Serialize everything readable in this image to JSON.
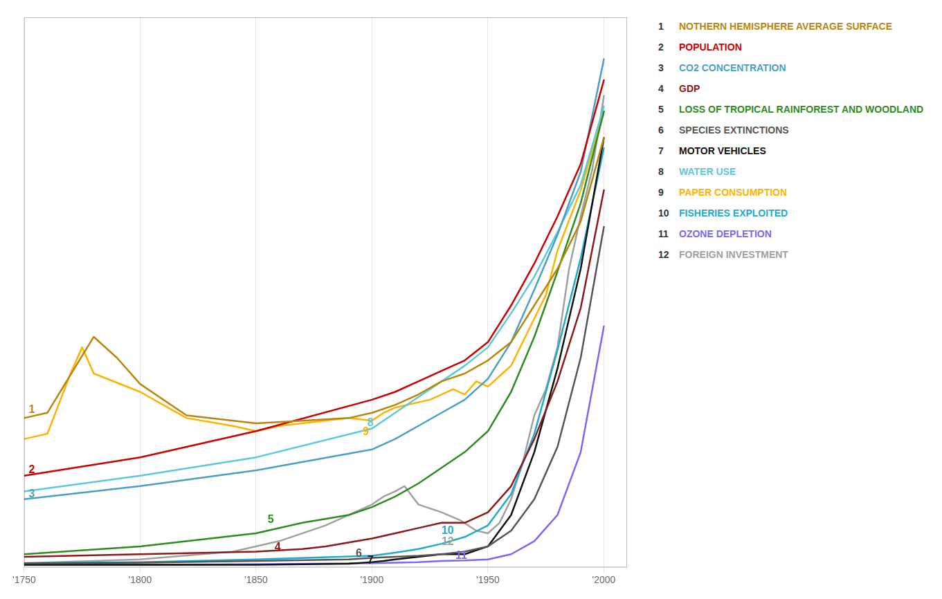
{
  "chart_data": {
    "type": "line",
    "xlim": [
      1750,
      2010
    ],
    "ylim": [
      0,
      1.05
    ],
    "xticks": [
      {
        "value": 1750,
        "label": "'1750"
      },
      {
        "value": 1800,
        "label": "'1800"
      },
      {
        "value": 1850,
        "label": "'1850"
      },
      {
        "value": 1900,
        "label": "'1900"
      },
      {
        "value": 1950,
        "label": "'1950"
      },
      {
        "value": 2000,
        "label": "'2000"
      }
    ],
    "yticks": [],
    "tick_labels": "x",
    "grid": true,
    "legend": "right",
    "series": [
      {
        "number": "1",
        "name": "NOTHERN HEMISPHERE AVERAGE SURFACE",
        "color": "#B8860B",
        "x": [
          1750,
          1760,
          1780,
          1790,
          1800,
          1820,
          1850,
          1870,
          1890,
          1900,
          1910,
          1920,
          1930,
          1940,
          1950,
          1960,
          1970,
          1980,
          1990,
          2000
        ],
        "values": [
          0.285,
          0.295,
          0.44,
          0.4,
          0.35,
          0.29,
          0.275,
          0.28,
          0.285,
          0.295,
          0.31,
          0.33,
          0.355,
          0.37,
          0.395,
          0.43,
          0.5,
          0.57,
          0.66,
          0.82
        ]
      },
      {
        "number": "2",
        "name": "POPULATION",
        "color": "#CC0000",
        "x": [
          1750,
          1800,
          1850,
          1900,
          1910,
          1920,
          1930,
          1940,
          1950,
          1960,
          1970,
          1980,
          1990,
          2000
        ],
        "values": [
          0.175,
          0.21,
          0.26,
          0.32,
          0.335,
          0.355,
          0.375,
          0.395,
          0.43,
          0.5,
          0.58,
          0.67,
          0.77,
          0.93
        ]
      },
      {
        "number": "3",
        "name": "CO2 CONCENTRATION",
        "color": "#4A9FC4",
        "x": [
          1750,
          1800,
          1850,
          1900,
          1910,
          1920,
          1930,
          1940,
          1950,
          1960,
          1970,
          1980,
          1990,
          2000
        ],
        "values": [
          0.13,
          0.155,
          0.185,
          0.225,
          0.245,
          0.27,
          0.295,
          0.32,
          0.36,
          0.43,
          0.53,
          0.635,
          0.755,
          0.97
        ]
      },
      {
        "number": "4",
        "name": "GDP",
        "color": "#8B1A1A",
        "x": [
          1750,
          1800,
          1850,
          1870,
          1880,
          1900,
          1910,
          1920,
          1930,
          1940,
          1950,
          1960,
          1970,
          1980,
          1990,
          2000
        ],
        "values": [
          0.02,
          0.025,
          0.03,
          0.035,
          0.04,
          0.055,
          0.065,
          0.075,
          0.085,
          0.085,
          0.105,
          0.155,
          0.245,
          0.355,
          0.495,
          0.72
        ]
      },
      {
        "number": "5",
        "name": "LOSS OF TROPICAL RAINFOREST AND WOODLAND",
        "color": "#2E8B22",
        "x": [
          1750,
          1800,
          1850,
          1870,
          1890,
          1900,
          1910,
          1920,
          1930,
          1940,
          1950,
          1960,
          1970,
          1980,
          1990,
          2000
        ],
        "values": [
          0.025,
          0.04,
          0.065,
          0.085,
          0.1,
          0.115,
          0.135,
          0.16,
          0.19,
          0.22,
          0.26,
          0.335,
          0.44,
          0.565,
          0.695,
          0.87
        ]
      },
      {
        "number": "6",
        "name": "SPECIES EXTINCTIONS",
        "color": "#555555",
        "x": [
          1750,
          1800,
          1850,
          1890,
          1900,
          1910,
          1920,
          1930,
          1940,
          1950,
          1960,
          1970,
          1980,
          1990,
          2000
        ],
        "values": [
          0.008,
          0.009,
          0.012,
          0.015,
          0.018,
          0.02,
          0.022,
          0.025,
          0.03,
          0.04,
          0.07,
          0.13,
          0.23,
          0.4,
          0.65
        ]
      },
      {
        "number": "7",
        "name": "MOTOR VEHICLES",
        "color": "#111111",
        "x": [
          1750,
          1800,
          1850,
          1890,
          1900,
          1905,
          1910,
          1920,
          1930,
          1940,
          1950,
          1960,
          1970,
          1980,
          1990,
          2000
        ],
        "values": [
          0.005,
          0.005,
          0.005,
          0.007,
          0.01,
          0.012,
          0.015,
          0.02,
          0.025,
          0.025,
          0.04,
          0.1,
          0.22,
          0.38,
          0.57,
          0.82
        ]
      },
      {
        "number": "8",
        "name": "WATER USE",
        "color": "#5BC8DC",
        "x": [
          1750,
          1800,
          1850,
          1900,
          1910,
          1920,
          1930,
          1940,
          1950,
          1960,
          1970,
          1980,
          1990,
          2000
        ],
        "values": [
          0.145,
          0.175,
          0.21,
          0.265,
          0.295,
          0.325,
          0.355,
          0.385,
          0.42,
          0.485,
          0.555,
          0.64,
          0.73,
          0.88
        ]
      },
      {
        "number": "9",
        "name": "PAPER CONSUMPTION",
        "color": "#FFB300",
        "x": [
          1750,
          1755,
          1760,
          1770,
          1775,
          1780,
          1800,
          1820,
          1840,
          1850,
          1860,
          1870,
          1890,
          1900,
          1905,
          1910,
          1915,
          1920,
          1925,
          1930,
          1935,
          1940,
          1945,
          1950,
          1955,
          1960,
          1970,
          1975,
          1980,
          1990,
          2000
        ],
        "values": [
          0.245,
          0.25,
          0.255,
          0.37,
          0.42,
          0.37,
          0.335,
          0.285,
          0.27,
          0.26,
          0.27,
          0.275,
          0.285,
          0.28,
          0.295,
          0.305,
          0.31,
          0.315,
          0.32,
          0.33,
          0.34,
          0.33,
          0.355,
          0.345,
          0.365,
          0.385,
          0.475,
          0.52,
          0.605,
          0.72,
          0.87
        ]
      },
      {
        "number": "10",
        "name": "FISHERIES EXPLOITED",
        "color": "#20AACC",
        "x": [
          1750,
          1800,
          1850,
          1900,
          1910,
          1920,
          1930,
          1940,
          1950,
          1960,
          1970,
          1980,
          1990,
          2000
        ],
        "values": [
          0.008,
          0.01,
          0.015,
          0.022,
          0.028,
          0.035,
          0.045,
          0.058,
          0.08,
          0.14,
          0.255,
          0.415,
          0.59,
          0.8
        ]
      },
      {
        "number": "11",
        "name": "OZONE DEPLETION",
        "color": "#7B68EE",
        "x": [
          1750,
          1800,
          1850,
          1900,
          1910,
          1920,
          1930,
          1940,
          1950,
          1960,
          1970,
          1980,
          1990,
          2000
        ],
        "values": [
          0.005,
          0.005,
          0.006,
          0.008,
          0.009,
          0.01,
          0.012,
          0.013,
          0.015,
          0.025,
          0.05,
          0.1,
          0.22,
          0.46
        ]
      },
      {
        "number": "12",
        "name": "FOREIGN INVESTMENT",
        "color": "#A0A0A0",
        "x": [
          1750,
          1800,
          1840,
          1860,
          1880,
          1900,
          1905,
          1910,
          1914,
          1920,
          1930,
          1938,
          1945,
          1950,
          1955,
          1960,
          1965,
          1970,
          1975,
          1980,
          1985,
          1990,
          1995,
          2000
        ],
        "values": [
          0.008,
          0.015,
          0.03,
          0.05,
          0.08,
          0.12,
          0.135,
          0.145,
          0.155,
          0.12,
          0.105,
          0.09,
          0.07,
          0.065,
          0.085,
          0.13,
          0.2,
          0.29,
          0.34,
          0.42,
          0.57,
          0.67,
          0.76,
          0.9
        ]
      }
    ],
    "annotations": [
      {
        "text": "1",
        "x": 1752,
        "y": 0.3,
        "color": "#B8860B"
      },
      {
        "text": "2",
        "x": 1752,
        "y": 0.185,
        "color": "#CC0000"
      },
      {
        "text": "3",
        "x": 1752,
        "y": 0.14,
        "color": "#4A9FC4"
      },
      {
        "text": "5",
        "x": 1855,
        "y": 0.09,
        "color": "#2E8B22"
      },
      {
        "text": "4",
        "x": 1858,
        "y": 0.038,
        "color": "#8B1A1A"
      },
      {
        "text": "6",
        "x": 1893,
        "y": 0.026,
        "color": "#555555"
      },
      {
        "text": "7",
        "x": 1898,
        "y": 0.013,
        "color": "#111111"
      },
      {
        "text": "8",
        "x": 1898,
        "y": 0.275,
        "color": "#5BC8DC"
      },
      {
        "text": "9",
        "x": 1896,
        "y": 0.258,
        "color": "#FFB300"
      },
      {
        "text": "10",
        "x": 1930,
        "y": 0.07,
        "color": "#20AACC"
      },
      {
        "text": "11",
        "x": 1936,
        "y": 0.022,
        "color": "#7B68EE"
      },
      {
        "text": "12",
        "x": 1930,
        "y": 0.048,
        "color": "#A0A0A0"
      }
    ]
  }
}
